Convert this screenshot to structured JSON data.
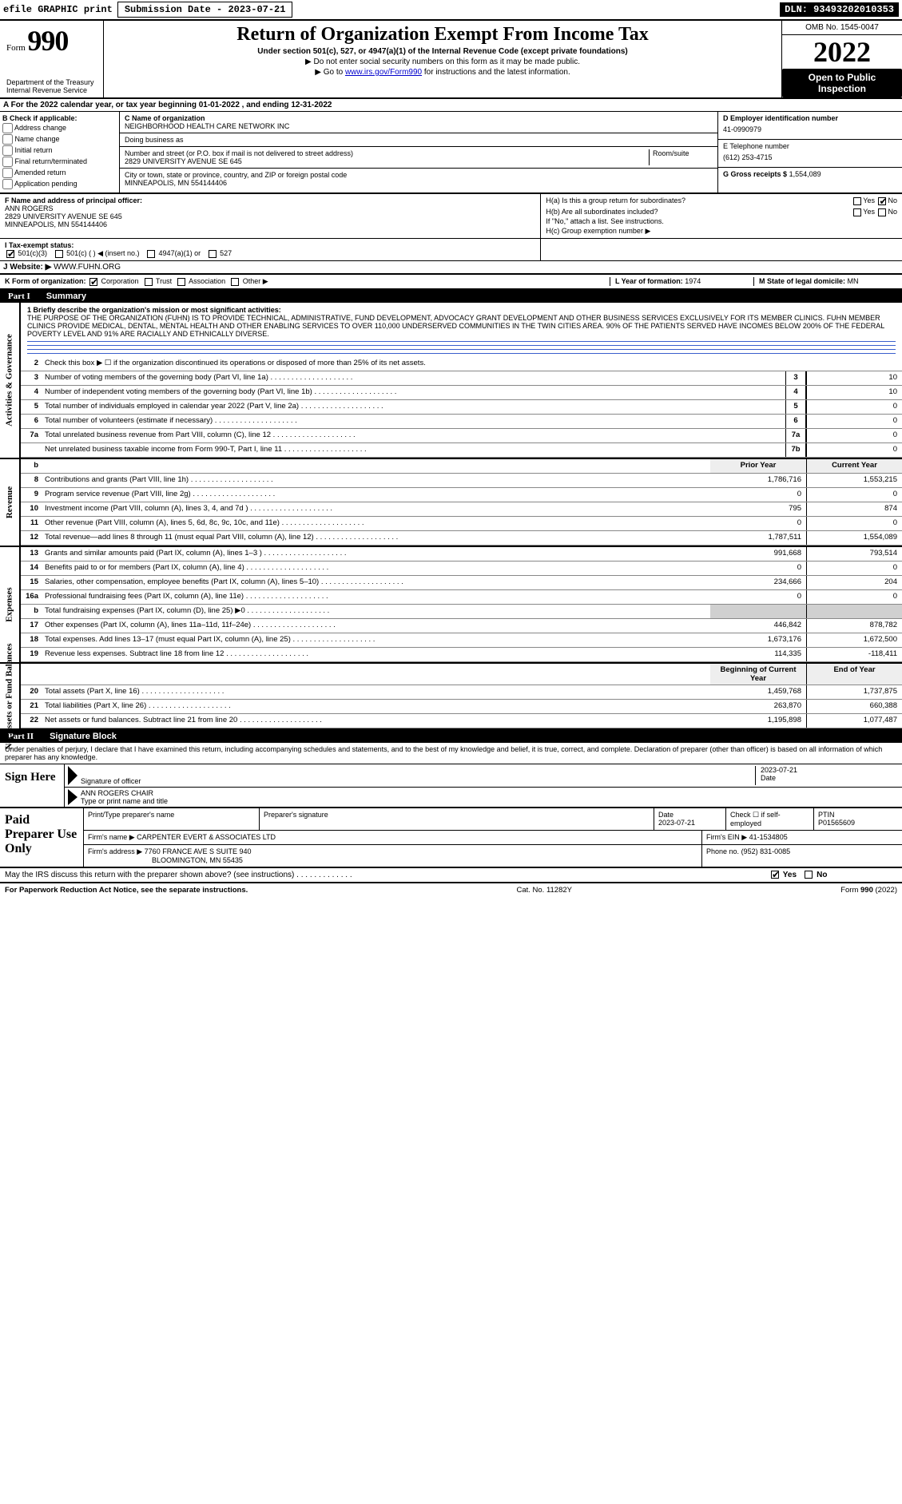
{
  "topbar": {
    "efile": "efile GRAPHIC print",
    "submission_label": "Submission Date - 2023-07-21",
    "dln": "DLN: 93493202010353"
  },
  "header": {
    "form_word": "Form",
    "form_num": "990",
    "dept": "Department of the Treasury\nInternal Revenue Service",
    "title": "Return of Organization Exempt From Income Tax",
    "subtitle": "Under section 501(c), 527, or 4947(a)(1) of the Internal Revenue Code (except private foundations)",
    "note1": "▶ Do not enter social security numbers on this form as it may be made public.",
    "note2_pre": "▶ Go to ",
    "note2_link": "www.irs.gov/Form990",
    "note2_post": " for instructions and the latest information.",
    "omb": "OMB No. 1545-0047",
    "year": "2022",
    "open": "Open to Public Inspection"
  },
  "period": "A For the 2022 calendar year, or tax year beginning 01-01-2022    , and ending 12-31-2022",
  "boxB": {
    "label": "B Check if applicable:",
    "opts": [
      "Address change",
      "Name change",
      "Initial return",
      "Final return/terminated",
      "Amended return",
      "Application pending"
    ]
  },
  "boxC": {
    "name_lbl": "C Name of organization",
    "name": "NEIGHBORHOOD HEALTH CARE NETWORK INC",
    "dba_lbl": "Doing business as",
    "dba": "",
    "addr_lbl": "Number and street (or P.O. box if mail is not delivered to street address)",
    "room_lbl": "Room/suite",
    "addr": "2829 UNIVERSITY AVENUE SE 645",
    "city_lbl": "City or town, state or province, country, and ZIP or foreign postal code",
    "city": "MINNEAPOLIS, MN  554144406"
  },
  "boxD": {
    "lbl": "D Employer identification number",
    "val": "41-0990979"
  },
  "boxE": {
    "lbl": "E Telephone number",
    "val": "(612) 253-4715"
  },
  "boxG": {
    "lbl": "G Gross receipts $",
    "val": "1,554,089"
  },
  "boxF": {
    "lbl": "F  Name and address of principal officer:",
    "name": "ANN ROGERS",
    "addr1": "2829 UNIVERSITY AVENUE SE 645",
    "addr2": "MINNEAPOLIS, MN  554144406"
  },
  "boxH": {
    "a_lbl": "H(a)  Is this a group return for subordinates?",
    "a_yes": "Yes",
    "a_no": "No",
    "b_lbl": "H(b)  Are all subordinates included?",
    "b_yes": "Yes",
    "b_no": "No",
    "b_note": "If \"No,\" attach a list. See instructions.",
    "c_lbl": "H(c)  Group exemption number ▶"
  },
  "boxI": {
    "lbl": "I   Tax-exempt status:",
    "o1": "501(c)(3)",
    "o2": "501(c) (  ) ◀ (insert no.)",
    "o3": "4947(a)(1) or",
    "o4": "527"
  },
  "boxJ": {
    "lbl": "J   Website: ▶",
    "val": "WWW.FUHN.ORG"
  },
  "boxK": {
    "lbl": "K Form of organization:",
    "o1": "Corporation",
    "o2": "Trust",
    "o3": "Association",
    "o4": "Other ▶"
  },
  "boxL": {
    "lbl": "L Year of formation:",
    "val": "1974"
  },
  "boxM": {
    "lbl": "M State of legal domicile:",
    "val": "MN"
  },
  "part1": {
    "num": "Part I",
    "title": "Summary"
  },
  "mission": {
    "lbl": "1   Briefly describe the organization's mission or most significant activities:",
    "text": "THE PURPOSE OF THE ORGANIZATION (FUHN) IS TO PROVIDE TECHNICAL, ADMINISTRATIVE, FUND DEVELOPMENT, ADVOCACY GRANT DEVELOPMENT AND OTHER BUSINESS SERVICES EXCLUSIVELY FOR ITS MEMBER CLINICS. FUHN MEMBER CLINICS PROVIDE MEDICAL, DENTAL, MENTAL HEALTH AND OTHER ENABLING SERVICES TO OVER 110,000 UNDERSERVED COMMUNITIES IN THE TWIN CITIES AREA. 90% OF THE PATIENTS SERVED HAVE INCOMES BELOW 200% OF THE FEDERAL POVERTY LEVEL AND 91% ARE RACIALLY AND ETHNICALLY DIVERSE."
  },
  "lines_gov": [
    {
      "n": "2",
      "t": "Check this box ▶ ☐ if the organization discontinued its operations or disposed of more than 25% of its net assets."
    },
    {
      "n": "3",
      "t": "Number of voting members of the governing body (Part VI, line 1a)",
      "k": "3",
      "v": "10"
    },
    {
      "n": "4",
      "t": "Number of independent voting members of the governing body (Part VI, line 1b)",
      "k": "4",
      "v": "10"
    },
    {
      "n": "5",
      "t": "Total number of individuals employed in calendar year 2022 (Part V, line 2a)",
      "k": "5",
      "v": "0"
    },
    {
      "n": "6",
      "t": "Total number of volunteers (estimate if necessary)",
      "k": "6",
      "v": "0"
    },
    {
      "n": "7a",
      "t": "Total unrelated business revenue from Part VIII, column (C), line 12",
      "k": "7a",
      "v": "0"
    },
    {
      "n": "",
      "t": "Net unrelated business taxable income from Form 990-T, Part I, line 11",
      "k": "7b",
      "v": "0"
    }
  ],
  "col_hdr": {
    "b": "b",
    "prior": "Prior Year",
    "current": "Current Year"
  },
  "lines_rev": [
    {
      "n": "8",
      "t": "Contributions and grants (Part VIII, line 1h)",
      "p": "1,786,716",
      "c": "1,553,215"
    },
    {
      "n": "9",
      "t": "Program service revenue (Part VIII, line 2g)",
      "p": "0",
      "c": "0"
    },
    {
      "n": "10",
      "t": "Investment income (Part VIII, column (A), lines 3, 4, and 7d )",
      "p": "795",
      "c": "874"
    },
    {
      "n": "11",
      "t": "Other revenue (Part VIII, column (A), lines 5, 6d, 8c, 9c, 10c, and 11e)",
      "p": "0",
      "c": "0"
    },
    {
      "n": "12",
      "t": "Total revenue—add lines 8 through 11 (must equal Part VIII, column (A), line 12)",
      "p": "1,787,511",
      "c": "1,554,089"
    }
  ],
  "lines_exp": [
    {
      "n": "13",
      "t": "Grants and similar amounts paid (Part IX, column (A), lines 1–3 )",
      "p": "991,668",
      "c": "793,514"
    },
    {
      "n": "14",
      "t": "Benefits paid to or for members (Part IX, column (A), line 4)",
      "p": "0",
      "c": "0"
    },
    {
      "n": "15",
      "t": "Salaries, other compensation, employee benefits (Part IX, column (A), lines 5–10)",
      "p": "234,666",
      "c": "204"
    },
    {
      "n": "16a",
      "t": "Professional fundraising fees (Part IX, column (A), line 11e)",
      "p": "0",
      "c": "0"
    },
    {
      "n": "b",
      "t": "Total fundraising expenses (Part IX, column (D), line 25) ▶0",
      "p": "",
      "c": "",
      "shade": true
    },
    {
      "n": "17",
      "t": "Other expenses (Part IX, column (A), lines 11a–11d, 11f–24e)",
      "p": "446,842",
      "c": "878,782"
    },
    {
      "n": "18",
      "t": "Total expenses. Add lines 13–17 (must equal Part IX, column (A), line 25)",
      "p": "1,673,176",
      "c": "1,672,500"
    },
    {
      "n": "19",
      "t": "Revenue less expenses. Subtract line 18 from line 12",
      "p": "114,335",
      "c": "-118,411"
    }
  ],
  "col_hdr2": {
    "prior": "Beginning of Current Year",
    "current": "End of Year"
  },
  "lines_net": [
    {
      "n": "20",
      "t": "Total assets (Part X, line 16)",
      "p": "1,459,768",
      "c": "1,737,875"
    },
    {
      "n": "21",
      "t": "Total liabilities (Part X, line 26)",
      "p": "263,870",
      "c": "660,388"
    },
    {
      "n": "22",
      "t": "Net assets or fund balances. Subtract line 21 from line 20",
      "p": "1,195,898",
      "c": "1,077,487"
    }
  ],
  "sidetabs": {
    "gov": "Activities & Governance",
    "rev": "Revenue",
    "exp": "Expenses",
    "net": "Net Assets or Fund Balances"
  },
  "part2": {
    "num": "Part II",
    "title": "Signature Block"
  },
  "penalty": "Under penalties of perjury, I declare that I have examined this return, including accompanying schedules and statements, and to the best of my knowledge and belief, it is true, correct, and complete. Declaration of preparer (other than officer) is based on all information of which preparer has any knowledge.",
  "sign": {
    "here": "Sign Here",
    "sig_of_officer": "Signature of officer",
    "date_lbl": "Date",
    "date": "2023-07-21",
    "name": "ANN ROGERS  CHAIR",
    "name_lbl": "Type or print name and title"
  },
  "prep": {
    "lbl": "Paid Preparer Use Only",
    "r1": {
      "c1": "Print/Type preparer's name",
      "c2": "Preparer's signature",
      "c3": "Date",
      "c3v": "2023-07-21",
      "c4": "Check ☐ if self-employed",
      "c5": "PTIN",
      "c5v": "P01565609"
    },
    "r2": {
      "c1": "Firm's name    ▶",
      "c1v": "CARPENTER EVERT & ASSOCIATES LTD",
      "c2": "Firm's EIN ▶",
      "c2v": "41-1534805"
    },
    "r3": {
      "c1": "Firm's address ▶",
      "c1v": "7760 FRANCE AVE S SUITE 940",
      "c2": "Phone no.",
      "c2v": "(952) 831-0085"
    },
    "r3b": "BLOOMINGTON, MN  55435"
  },
  "discuss": {
    "q": "May the IRS discuss this return with the preparer shown above? (see instructions)",
    "yes": "Yes",
    "no": "No"
  },
  "footer": {
    "left": "For Paperwork Reduction Act Notice, see the separate instructions.",
    "mid": "Cat. No. 11282Y",
    "right": "Form 990 (2022)"
  }
}
